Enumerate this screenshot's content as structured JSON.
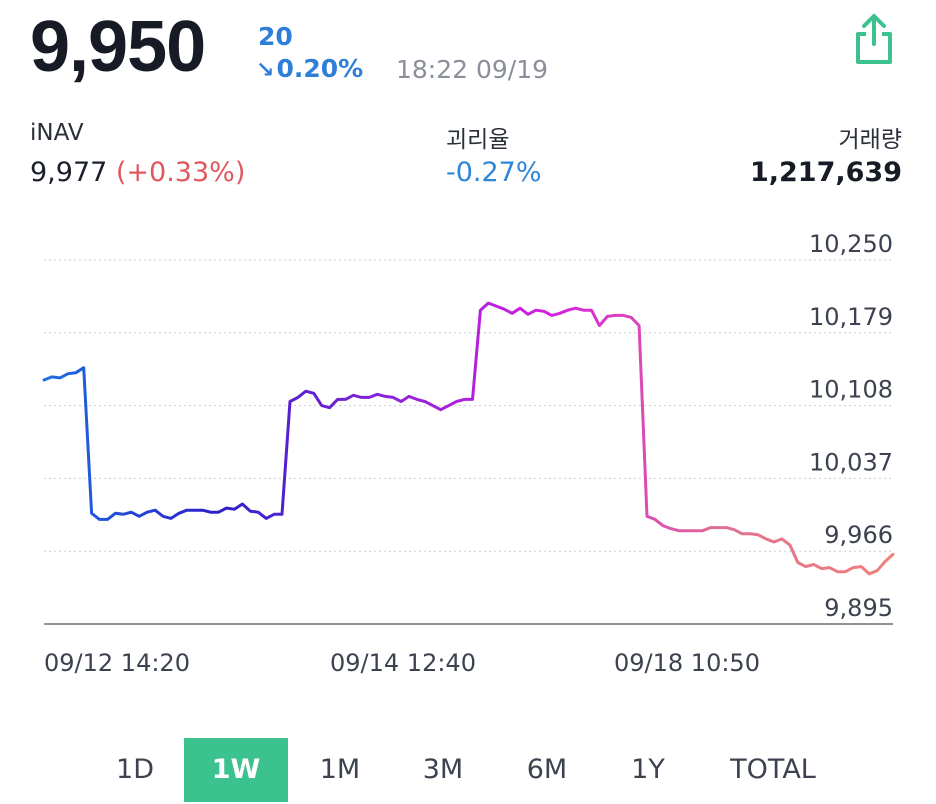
{
  "header": {
    "price": "9,950",
    "change_abs": "20",
    "change_pct": "0.20%",
    "direction": "down",
    "timestamp": "18:22 09/19",
    "share_icon": "share-icon"
  },
  "stats": {
    "inav_label": "iNAV",
    "inav_value": "9,977",
    "inav_change": "(+0.33%)",
    "deviation_label": "괴리율",
    "deviation_value": "-0.27%",
    "volume_label": "거래량",
    "volume_value": "1,217,639"
  },
  "chart_data": {
    "type": "line",
    "ylim": [
      9895,
      10250
    ],
    "y_ticks": [
      10250,
      10179,
      10108,
      10037,
      9966,
      9895
    ],
    "y_tick_labels": [
      "10,250",
      "10,179",
      "10,108",
      "10,037",
      "9,966",
      "9,895"
    ],
    "x_tick_labels": [
      "09/12 14:20",
      "09/14 12:40",
      "09/18 10:50"
    ],
    "grid": true,
    "gradient_colors": [
      "#1f6fe0",
      "#2b1fc9",
      "#8a22d8",
      "#d61fe0",
      "#e07090",
      "#f0807a"
    ],
    "values": [
      10133,
      10136,
      10135,
      10139,
      10140,
      10145,
      10003,
      9997,
      9997,
      10003,
      10002,
      10004,
      10000,
      10004,
      10006,
      10000,
      9998,
      10003,
      10006,
      10006,
      10006,
      10004,
      10004,
      10008,
      10007,
      10012,
      10005,
      10004,
      9998,
      10002,
      10002,
      10112,
      10116,
      10122,
      10120,
      10108,
      10106,
      10114,
      10114,
      10118,
      10116,
      10116,
      10119,
      10117,
      10116,
      10112,
      10117,
      10114,
      10112,
      10108,
      10104,
      10108,
      10112,
      10114,
      10114,
      10201,
      10208,
      10205,
      10202,
      10198,
      10203,
      10197,
      10201,
      10200,
      10196,
      10198,
      10201,
      10203,
      10201,
      10201,
      10186,
      10195,
      10196,
      10196,
      10194,
      10186,
      10000,
      9997,
      9991,
      9988,
      9986,
      9986,
      9986,
      9986,
      9989,
      9989,
      9989,
      9987,
      9983,
      9983,
      9982,
      9978,
      9975,
      9978,
      9972,
      9955,
      9951,
      9953,
      9949,
      9950,
      9946,
      9946,
      9950,
      9951,
      9944,
      9947,
      9956,
      9963
    ]
  },
  "periods": {
    "items": [
      "1D",
      "1W",
      "1M",
      "3M",
      "6M",
      "1Y",
      "TOTAL"
    ],
    "active": "1W"
  }
}
